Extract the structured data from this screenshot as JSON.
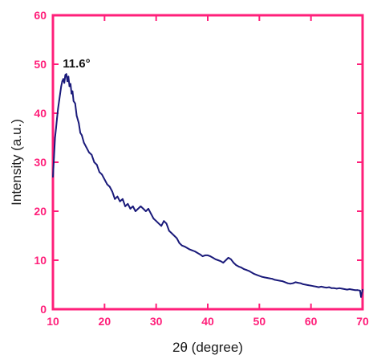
{
  "chart_data": {
    "type": "line",
    "title": "",
    "xlabel": "2θ (degree)",
    "ylabel": "Intensity  (a.u.)",
    "xlim": [
      10,
      70
    ],
    "ylim": [
      0,
      60
    ],
    "x_ticks": [
      10,
      20,
      30,
      40,
      50,
      60,
      70
    ],
    "y_ticks": [
      0,
      10,
      20,
      30,
      40,
      50,
      60
    ],
    "grid": false,
    "annotations": [
      {
        "text": "11.6°",
        "x": 11.6,
        "y": 48
      }
    ],
    "colors": {
      "axis": "#ff1f7a",
      "line": "#1a1a7a",
      "text": "#1a1a1a"
    },
    "series": [
      {
        "values": [
          [
            10.0,
            27
          ],
          [
            10.2,
            31
          ],
          [
            10.4,
            35
          ],
          [
            10.6,
            37
          ],
          [
            10.8,
            39
          ],
          [
            11.0,
            41
          ],
          [
            11.2,
            42.5
          ],
          [
            11.4,
            44
          ],
          [
            11.6,
            45.5
          ],
          [
            11.8,
            46.5
          ],
          [
            12.0,
            47
          ],
          [
            12.2,
            46.2
          ],
          [
            12.4,
            47.8
          ],
          [
            12.6,
            48
          ],
          [
            12.8,
            46.5
          ],
          [
            13.0,
            47.5
          ],
          [
            13.2,
            45.5
          ],
          [
            13.4,
            46
          ],
          [
            13.6,
            44
          ],
          [
            13.8,
            44.5
          ],
          [
            14.0,
            42.5
          ],
          [
            14.3,
            42
          ],
          [
            14.6,
            39.5
          ],
          [
            15.0,
            38
          ],
          [
            15.3,
            36
          ],
          [
            15.6,
            35.5
          ],
          [
            16.0,
            34
          ],
          [
            16.5,
            33
          ],
          [
            17.0,
            32
          ],
          [
            17.5,
            31.5
          ],
          [
            18.0,
            30
          ],
          [
            18.5,
            29.5
          ],
          [
            19.0,
            28
          ],
          [
            19.5,
            27.5
          ],
          [
            20.0,
            26.5
          ],
          [
            20.5,
            25.5
          ],
          [
            21.0,
            25
          ],
          [
            21.5,
            24
          ],
          [
            22.0,
            22.5
          ],
          [
            22.5,
            23
          ],
          [
            23.0,
            22
          ],
          [
            23.5,
            22.5
          ],
          [
            24.0,
            21
          ],
          [
            24.5,
            21.5
          ],
          [
            25.0,
            20.5
          ],
          [
            25.5,
            21
          ],
          [
            26.0,
            20
          ],
          [
            26.5,
            20.5
          ],
          [
            27.0,
            21
          ],
          [
            27.5,
            20.5
          ],
          [
            28.0,
            20
          ],
          [
            28.5,
            20.5
          ],
          [
            29.0,
            19.5
          ],
          [
            29.5,
            18.5
          ],
          [
            30.0,
            18
          ],
          [
            30.5,
            17.5
          ],
          [
            31.0,
            17
          ],
          [
            31.5,
            18
          ],
          [
            32.0,
            17.5
          ],
          [
            32.5,
            16
          ],
          [
            33.0,
            15.5
          ],
          [
            33.5,
            15
          ],
          [
            34.0,
            14.5
          ],
          [
            34.5,
            13.5
          ],
          [
            35.0,
            13
          ],
          [
            35.5,
            12.8
          ],
          [
            36.0,
            12.5
          ],
          [
            36.5,
            12.2
          ],
          [
            37.0,
            12
          ],
          [
            37.5,
            11.8
          ],
          [
            38.0,
            11.5
          ],
          [
            38.5,
            11.2
          ],
          [
            39.0,
            10.8
          ],
          [
            39.5,
            11
          ],
          [
            40.0,
            11
          ],
          [
            40.5,
            10.8
          ],
          [
            41.0,
            10.5
          ],
          [
            41.5,
            10.2
          ],
          [
            42.0,
            10
          ],
          [
            42.5,
            9.8
          ],
          [
            43.0,
            9.5
          ],
          [
            43.5,
            10
          ],
          [
            44.0,
            10.5
          ],
          [
            44.5,
            10.2
          ],
          [
            45.0,
            9.5
          ],
          [
            45.5,
            9
          ],
          [
            46.0,
            8.7
          ],
          [
            46.5,
            8.5
          ],
          [
            47.0,
            8.2
          ],
          [
            47.5,
            8
          ],
          [
            48.0,
            7.8
          ],
          [
            48.5,
            7.5
          ],
          [
            49.0,
            7.2
          ],
          [
            49.5,
            7
          ],
          [
            50.0,
            6.8
          ],
          [
            50.5,
            6.6
          ],
          [
            51.0,
            6.5
          ],
          [
            51.5,
            6.4
          ],
          [
            52.0,
            6.3
          ],
          [
            52.5,
            6.2
          ],
          [
            53.0,
            6
          ],
          [
            53.5,
            5.9
          ],
          [
            54.0,
            5.8
          ],
          [
            54.5,
            5.7
          ],
          [
            55.0,
            5.5
          ],
          [
            55.5,
            5.3
          ],
          [
            56.0,
            5.2
          ],
          [
            56.5,
            5.3
          ],
          [
            57.0,
            5.5
          ],
          [
            57.5,
            5.4
          ],
          [
            58.0,
            5.3
          ],
          [
            58.5,
            5.1
          ],
          [
            59.0,
            5
          ],
          [
            59.5,
            4.9
          ],
          [
            60.0,
            4.8
          ],
          [
            60.5,
            4.7
          ],
          [
            61.0,
            4.6
          ],
          [
            61.5,
            4.5
          ],
          [
            62.0,
            4.6
          ],
          [
            62.5,
            4.5
          ],
          [
            63.0,
            4.4
          ],
          [
            63.5,
            4.5
          ],
          [
            64.0,
            4.3
          ],
          [
            64.5,
            4.3
          ],
          [
            65.0,
            4.2
          ],
          [
            65.5,
            4.3
          ],
          [
            66.0,
            4.2
          ],
          [
            66.5,
            4.1
          ],
          [
            67.0,
            4
          ],
          [
            67.5,
            4.1
          ],
          [
            68.0,
            4
          ],
          [
            68.5,
            3.9
          ],
          [
            69.0,
            3.9
          ],
          [
            69.5,
            3.8
          ],
          [
            69.7,
            2.5
          ],
          [
            70.0,
            4
          ]
        ]
      }
    ]
  }
}
